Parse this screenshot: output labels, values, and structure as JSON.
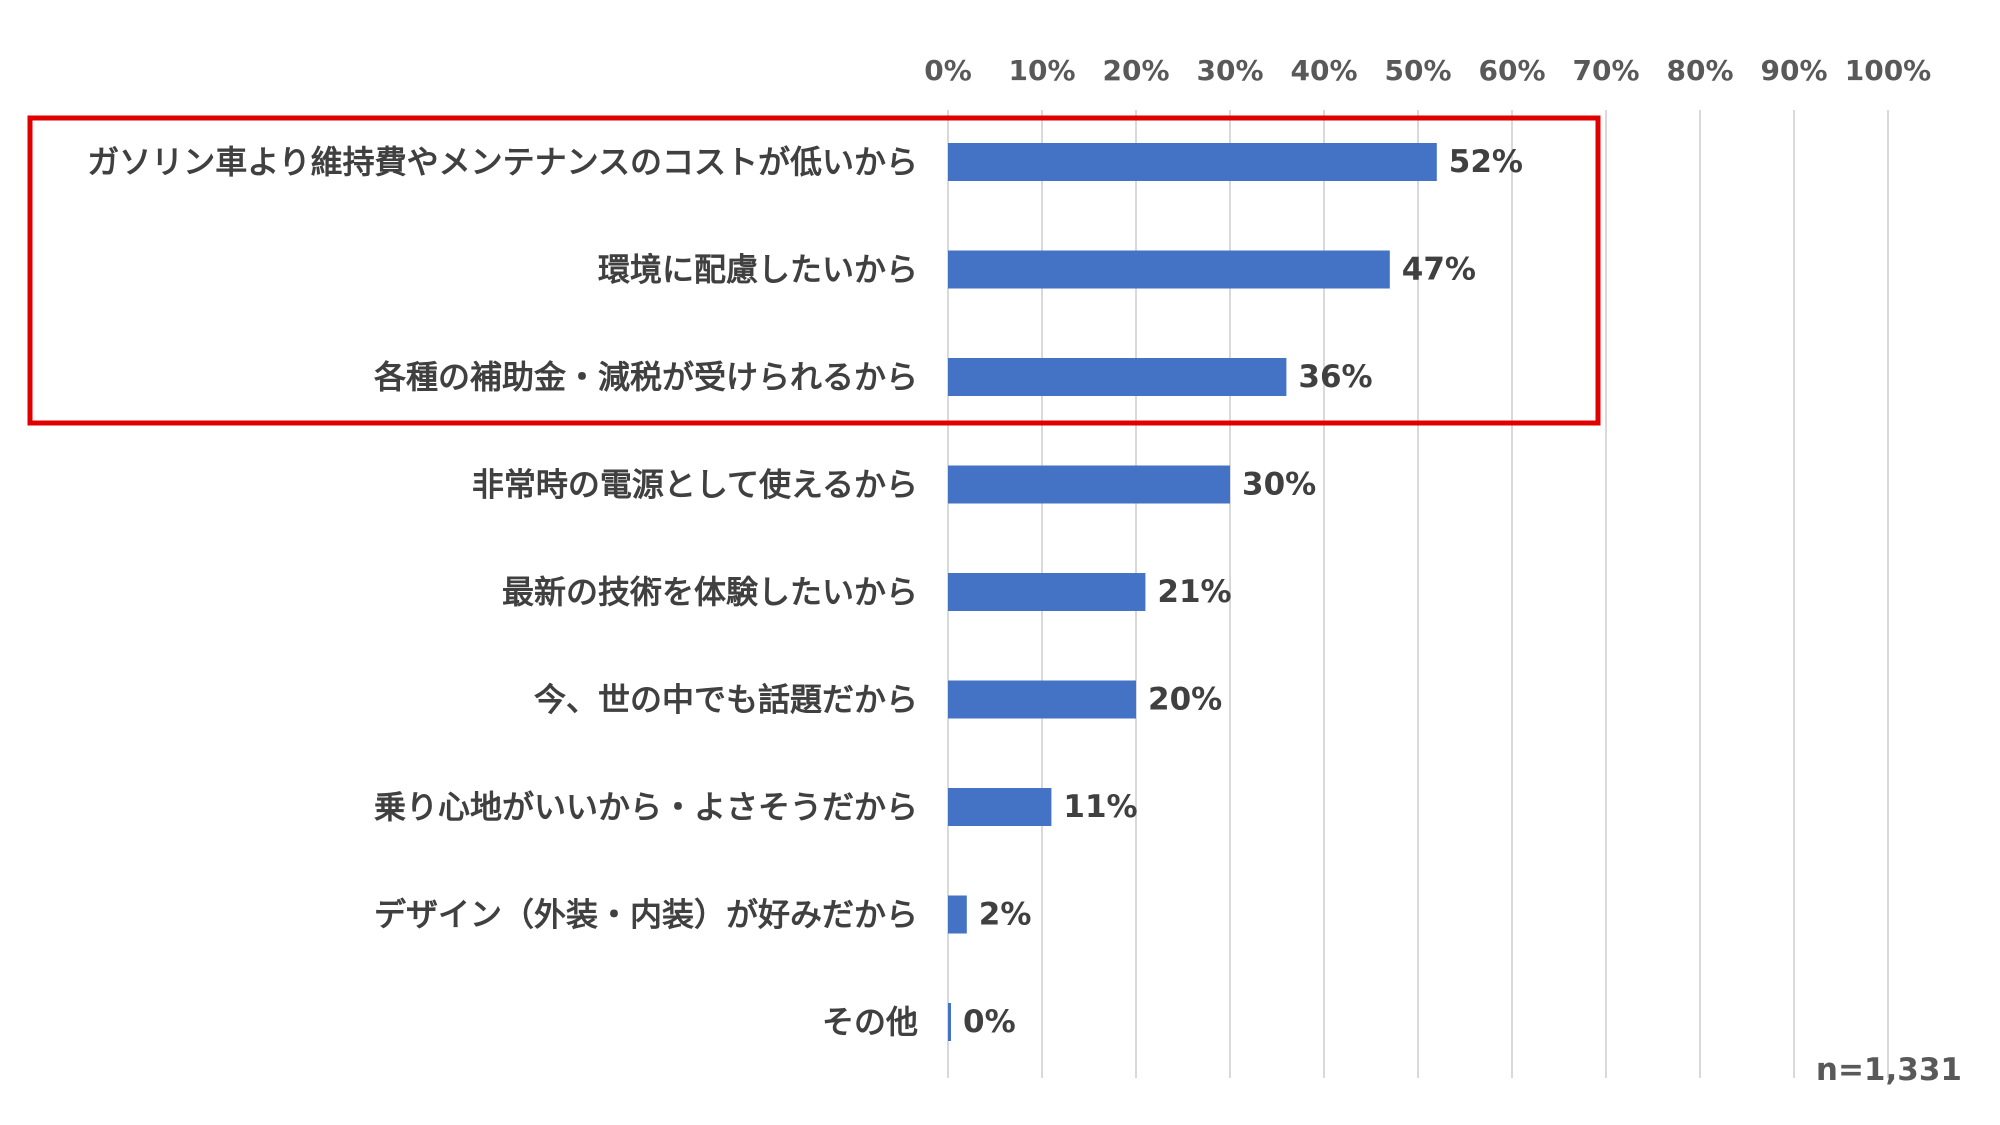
{
  "chart_data": {
    "type": "bar",
    "orientation": "horizontal",
    "categories": [
      "ガソリン車より維持費やメンテナンスのコストが低いから",
      "環境に配慮したいから",
      "各種の補助金・減税が受けられるから",
      "非常時の電源として使えるから",
      "最新の技術を体験したいから",
      "今、世の中でも話題だから",
      "乗り心地がいいから・よさそうだから",
      "デザイン（外装・内装）が好みだから",
      "その他"
    ],
    "values": [
      52,
      47,
      36,
      30,
      21,
      20,
      11,
      2,
      0
    ],
    "value_labels": [
      "52%",
      "47%",
      "36%",
      "30%",
      "21%",
      "20%",
      "11%",
      "2%",
      "0%"
    ],
    "xlim": [
      0,
      100
    ],
    "x_ticks": [
      0,
      10,
      20,
      30,
      40,
      50,
      60,
      70,
      80,
      90,
      100
    ],
    "x_tick_labels": [
      "0%",
      "10%",
      "20%",
      "30%",
      "40%",
      "50%",
      "60%",
      "70%",
      "80%",
      "90%",
      "100%"
    ],
    "x_axis_position": "top",
    "grid": true,
    "bar_color": "#4472c4",
    "gridline_color": "#d9d9d9",
    "highlight": {
      "first_category_index": 0,
      "last_category_index": 2,
      "color": "#e00000"
    },
    "note": "n=1,331"
  }
}
